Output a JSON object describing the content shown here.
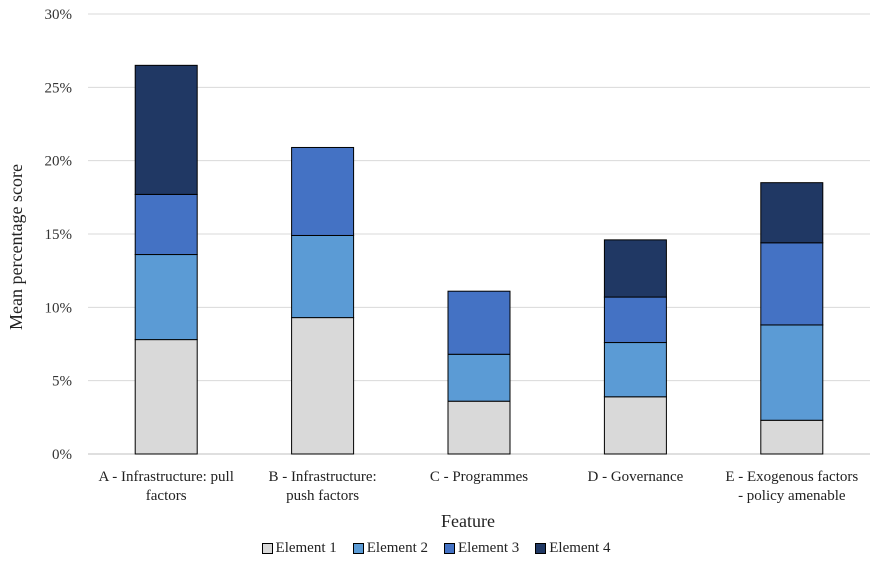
{
  "chart_data": {
    "type": "bar",
    "stacked": true,
    "categories": [
      [
        "A - Infrastructure: pull",
        "factors"
      ],
      [
        "B - Infrastructure:",
        "push factors"
      ],
      [
        "C - Programmes"
      ],
      [
        "D - Governance"
      ],
      [
        "E - Exogenous factors",
        "- policy amenable"
      ]
    ],
    "series": [
      {
        "name": "Element 1",
        "color": "#d9d9d9",
        "values": [
          7.8,
          9.3,
          3.6,
          3.9,
          2.3
        ]
      },
      {
        "name": "Element 2",
        "color": "#5b9bd5",
        "values": [
          5.8,
          5.6,
          3.2,
          3.7,
          6.5
        ]
      },
      {
        "name": "Element 3",
        "color": "#4472c4",
        "values": [
          4.1,
          6.0,
          4.3,
          3.1,
          5.6
        ]
      },
      {
        "name": "Element 4",
        "color": "#203864",
        "values": [
          8.8,
          0,
          0,
          3.9,
          4.1
        ]
      }
    ],
    "title": "",
    "xlabel": "Feature",
    "ylabel": "Mean percentage score",
    "ylim": [
      0,
      30
    ],
    "yticks": [
      "0%",
      "5%",
      "10%",
      "15%",
      "20%",
      "25%",
      "30%"
    ],
    "grid": true,
    "legend_position": "bottom"
  }
}
